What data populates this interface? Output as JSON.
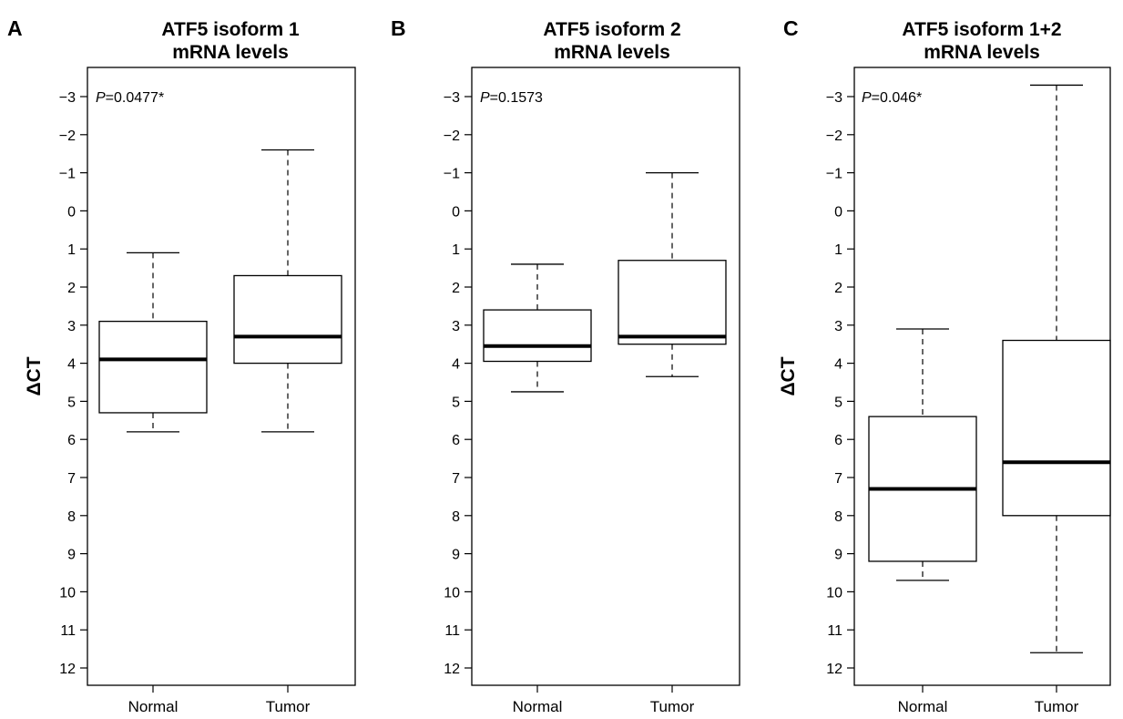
{
  "chart_data": [
    {
      "type": "box",
      "panel": "A",
      "title": [
        "ATF5 isoform 1",
        "mRNA levels"
      ],
      "ylabel": "ΔCT",
      "y_inverted": true,
      "ylim": [
        -3,
        12
      ],
      "yticks": [
        "-3",
        "-2",
        "-1",
        "0",
        "1",
        "2",
        "3",
        "4",
        "5",
        "6",
        "7",
        "8",
        "9",
        "10",
        "11",
        "12"
      ],
      "categories": [
        "Normal",
        "Tumor"
      ],
      "p_value": {
        "prefix": "P",
        "text": "=0.0477*"
      },
      "boxes": [
        {
          "category": "Normal",
          "whisker_low": 1.1,
          "q1": 2.9,
          "median": 3.9,
          "q3": 5.3,
          "whisker_high": 5.8
        },
        {
          "category": "Tumor",
          "whisker_low": -1.6,
          "q1": 1.7,
          "median": 3.3,
          "q3": 4.0,
          "whisker_high": 5.8
        }
      ]
    },
    {
      "type": "box",
      "panel": "B",
      "title": [
        "ATF5 isoform 2",
        "mRNA levels"
      ],
      "ylabel": "",
      "y_inverted": true,
      "ylim": [
        -3,
        12
      ],
      "yticks": [
        "-3",
        "-2",
        "-1",
        "0",
        "1",
        "2",
        "3",
        "4",
        "5",
        "6",
        "7",
        "8",
        "9",
        "10",
        "11",
        "12"
      ],
      "categories": [
        "Normal",
        "Tumor"
      ],
      "p_value": {
        "prefix": "P",
        "text": "=0.1573"
      },
      "boxes": [
        {
          "category": "Normal",
          "whisker_low": 1.4,
          "q1": 2.6,
          "median": 3.55,
          "q3": 3.95,
          "whisker_high": 4.75
        },
        {
          "category": "Tumor",
          "whisker_low": -1.0,
          "q1": 1.3,
          "median": 3.3,
          "q3": 3.5,
          "whisker_high": 4.35
        }
      ]
    },
    {
      "type": "box",
      "panel": "C",
      "title": [
        "ATF5 isoform 1+2",
        "mRNA levels"
      ],
      "ylabel": "ΔCT",
      "y_inverted": true,
      "ylim": [
        -3,
        12
      ],
      "yticks": [
        "-3",
        "-2",
        "-1",
        "0",
        "1",
        "2",
        "3",
        "4",
        "5",
        "6",
        "7",
        "8",
        "9",
        "10",
        "11",
        "12"
      ],
      "categories": [
        "Normal",
        "Tumor"
      ],
      "p_value": {
        "prefix": "P",
        "text": "=0.046*"
      },
      "boxes": [
        {
          "category": "Normal",
          "whisker_low": 3.1,
          "q1": 5.4,
          "median": 7.3,
          "q3": 9.2,
          "whisker_high": 9.7
        },
        {
          "category": "Tumor",
          "whisker_low": -3.3,
          "q1": 3.4,
          "median": 6.6,
          "q3": 8.0,
          "whisker_high": 11.6
        }
      ]
    }
  ]
}
